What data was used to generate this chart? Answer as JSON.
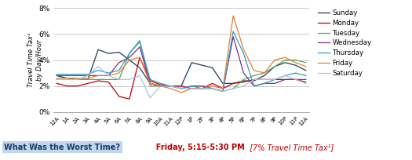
{
  "x_labels": [
    "12A",
    "1A",
    "2A",
    "3A",
    "4A",
    "5A",
    "6A",
    "7A",
    "8A",
    "9A",
    "10A",
    "11A",
    "12P",
    "1P",
    "2P",
    "3P",
    "4P",
    "5P",
    "6P",
    "7P",
    "8P",
    "9P",
    "10P",
    "11P",
    "12A"
  ],
  "sunday": [
    2.8,
    2.6,
    2.5,
    2.5,
    4.8,
    4.5,
    4.6,
    4.0,
    3.4,
    2.2,
    2.0,
    2.0,
    2.0,
    3.8,
    3.6,
    3.4,
    2.2,
    2.2,
    2.4,
    2.4,
    2.8,
    3.5,
    3.8,
    3.6,
    3.2
  ],
  "monday": [
    2.2,
    2.0,
    2.0,
    2.2,
    2.4,
    2.3,
    1.2,
    1.0,
    4.2,
    2.4,
    2.1,
    2.0,
    2.0,
    1.8,
    1.8,
    2.2,
    1.8,
    2.2,
    2.3,
    2.5,
    2.5,
    2.5,
    2.5,
    2.5,
    2.3
  ],
  "tuesday": [
    2.5,
    2.5,
    2.5,
    2.5,
    2.5,
    2.5,
    2.5,
    4.5,
    5.5,
    2.0,
    2.0,
    2.0,
    1.8,
    2.0,
    2.0,
    1.8,
    1.6,
    1.8,
    2.5,
    2.8,
    3.0,
    3.5,
    4.0,
    4.0,
    3.8
  ],
  "wednesday": [
    2.8,
    2.8,
    2.8,
    2.8,
    2.8,
    2.8,
    3.8,
    4.2,
    5.0,
    2.2,
    2.0,
    2.0,
    1.8,
    2.0,
    2.0,
    1.8,
    1.6,
    5.8,
    3.0,
    2.0,
    2.2,
    2.2,
    2.5,
    2.5,
    2.5
  ],
  "thursday": [
    2.9,
    2.9,
    2.9,
    2.9,
    3.2,
    3.0,
    3.2,
    4.5,
    5.4,
    2.5,
    2.2,
    2.0,
    1.8,
    2.0,
    1.8,
    1.8,
    1.6,
    6.2,
    4.5,
    2.0,
    2.2,
    2.5,
    2.8,
    3.0,
    2.8
  ],
  "friday": [
    2.6,
    2.6,
    2.6,
    2.6,
    2.8,
    2.8,
    3.0,
    4.0,
    4.2,
    2.2,
    2.0,
    1.8,
    1.5,
    1.8,
    1.8,
    2.0,
    1.8,
    7.4,
    4.8,
    3.2,
    3.0,
    4.0,
    4.2,
    3.8,
    3.5
  ],
  "saturday": [
    2.5,
    2.5,
    2.5,
    2.8,
    3.5,
    2.8,
    2.5,
    2.5,
    2.8,
    1.1,
    2.0,
    2.0,
    1.8,
    1.8,
    1.8,
    1.8,
    1.6,
    1.8,
    2.0,
    2.5,
    2.5,
    2.5,
    2.8,
    2.5,
    2.2
  ],
  "colors": {
    "sunday": "#1F3864",
    "monday": "#C00000",
    "tuesday": "#4CAF50",
    "wednesday": "#7B2D8B",
    "thursday": "#2E9DC8",
    "friday": "#ED7D31",
    "saturday": "#A9C4E4"
  },
  "ylim": [
    0,
    8
  ],
  "yticks": [
    0,
    2,
    4,
    6,
    8
  ],
  "ytick_labels": [
    "0%",
    "2%",
    "4%",
    "6%",
    "8%"
  ],
  "ylabel": "Travel Time Tax¹\nby Day/Hour",
  "bottom_text1": "What Was the Worst Time?",
  "bottom_text2": "  Friday, 5:15-5:30 PM",
  "bottom_text3": "  [7% Travel Time Tax¹]",
  "bg_color": "#FFFFFF"
}
